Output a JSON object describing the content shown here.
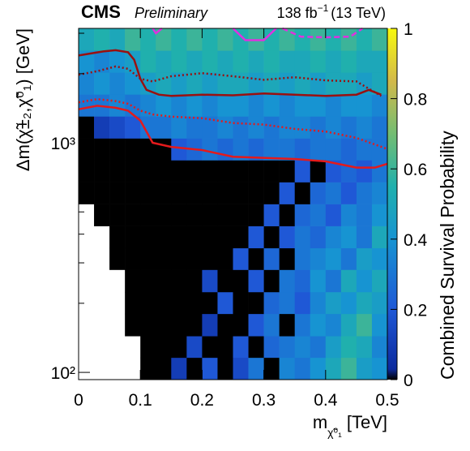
{
  "chart_data": {
    "type": "heatmap",
    "experiment": "CMS",
    "status": "Preliminary",
    "lumi": "138 fb",
    "lumi_exponent": "−1",
    "energy": "(13 TeV)",
    "xlabel_main": "m",
    "xlabel_sub": "χ̃⁰₁",
    "xlabel_unit": "[TeV]",
    "ylabel": "Δm(χ̃±₂,χ̃⁰₁) [GeV]",
    "zlabel": "Combined Survival Probability",
    "xlim": [
      0,
      0.5
    ],
    "xticks": [
      0,
      0.1,
      0.2,
      0.3,
      0.4,
      0.5
    ],
    "ylim": [
      93,
      3150
    ],
    "ylog": true,
    "yticks": [
      {
        "value": 100,
        "label": "10²"
      },
      {
        "value": 1000,
        "label": "10³"
      }
    ],
    "yminor": [
      200,
      300,
      400,
      500,
      600,
      700,
      800,
      900,
      2000,
      3000
    ],
    "zlim": [
      0,
      1
    ],
    "zticks": [
      0,
      0.2,
      0.4,
      0.6,
      0.8,
      1
    ],
    "colorscale": [
      [
        0,
        "#000000"
      ],
      [
        0.03,
        "#0c2a9e"
      ],
      [
        0.2,
        "#1f58d6"
      ],
      [
        0.4,
        "#1794d2"
      ],
      [
        0.55,
        "#20b0ad"
      ],
      [
        0.7,
        "#73bd72"
      ],
      [
        0.85,
        "#d2b94a"
      ],
      [
        1,
        "#f8fa0d"
      ]
    ],
    "xbins": [
      0,
      0.025,
      0.05,
      0.075,
      0.1,
      0.125,
      0.15,
      0.175,
      0.2,
      0.225,
      0.25,
      0.275,
      0.3,
      0.325,
      0.35,
      0.375,
      0.4,
      0.425,
      0.45,
      0.475,
      0.5
    ],
    "ybins": [
      93,
      116,
      144,
      180,
      224,
      280,
      348,
      434,
      541,
      674,
      840,
      1046,
      1304,
      1625,
      2025,
      2523,
      3150
    ],
    "z": [
      [
        null,
        null,
        null,
        null,
        0,
        0,
        0.1,
        0,
        0.2,
        0,
        0.15,
        0.3,
        0,
        0.35,
        0.3,
        0.4,
        0.5,
        0.6,
        0.45,
        0.4
      ],
      [
        null,
        null,
        null,
        null,
        0,
        0,
        0,
        0.15,
        0,
        0,
        0.2,
        0,
        0.25,
        0.3,
        0.35,
        0.3,
        0.45,
        0.55,
        0.5,
        0.35
      ],
      [
        null,
        null,
        null,
        0,
        0,
        0,
        0,
        0,
        0.1,
        0,
        0,
        0.2,
        0.3,
        0,
        0.3,
        0.4,
        0.35,
        0.5,
        0.6,
        0.4
      ],
      [
        null,
        null,
        null,
        0,
        0,
        0,
        0,
        0,
        0,
        0.2,
        0,
        0,
        0.25,
        0.3,
        0.2,
        0.35,
        0.45,
        0.4,
        0.5,
        0.45
      ],
      [
        null,
        null,
        null,
        0,
        0,
        0,
        0,
        0,
        0.15,
        0,
        0,
        0.2,
        0,
        0.3,
        0.25,
        0.4,
        0.3,
        0.5,
        0.4,
        0.5
      ],
      [
        null,
        null,
        0,
        0,
        0,
        0,
        0,
        0,
        0,
        0,
        0.2,
        0,
        0.25,
        0,
        0.3,
        0.35,
        0.4,
        0.3,
        0.45,
        0.4
      ],
      [
        null,
        null,
        0,
        0,
        0,
        0,
        0,
        0,
        0,
        0,
        0,
        0.2,
        0,
        0.2,
        0.3,
        0.25,
        0.35,
        0.4,
        0.3,
        0.5
      ],
      [
        null,
        0,
        0,
        0,
        0,
        0,
        0,
        0,
        0,
        0,
        0,
        0,
        0.2,
        0,
        0.25,
        0.3,
        0.2,
        0.35,
        0.3,
        0.4
      ],
      [
        0,
        0,
        0,
        0,
        0,
        0,
        0,
        0,
        0,
        0,
        0,
        0,
        0,
        0.2,
        0,
        0.25,
        0.3,
        0.2,
        0.3,
        0.35
      ],
      [
        0,
        0,
        0,
        0,
        0,
        0,
        0,
        0,
        0,
        0,
        0,
        0,
        0,
        0,
        0.2,
        0,
        0.2,
        0.25,
        0.2,
        0.3
      ],
      [
        0,
        0,
        0,
        0,
        0,
        0,
        0.2,
        0.25,
        0.3,
        0.25,
        0.3,
        0.25,
        0.3,
        0.3,
        0.25,
        0.3,
        0.3,
        0.25,
        0.3,
        0.3
      ],
      [
        0,
        0.1,
        0.15,
        0.2,
        0.3,
        0.3,
        0.35,
        0.3,
        0.3,
        0.35,
        0.3,
        0.35,
        0.3,
        0.35,
        0.35,
        0.3,
        0.35,
        0.3,
        0.35,
        0.3
      ],
      [
        0.3,
        0.3,
        0.35,
        0.3,
        0.35,
        0.4,
        0.35,
        0.4,
        0.35,
        0.4,
        0.4,
        0.35,
        0.4,
        0.35,
        0.4,
        0.4,
        0.35,
        0.4,
        0.4,
        0.35
      ],
      [
        0.35,
        0.4,
        0.35,
        0.4,
        0.45,
        0.5,
        0.45,
        0.5,
        0.45,
        0.5,
        0.5,
        0.45,
        0.5,
        0.45,
        0.5,
        0.45,
        0.5,
        0.5,
        0.45,
        0.5
      ],
      [
        0.4,
        0.35,
        0.4,
        0.45,
        0.55,
        0.5,
        0.55,
        0.5,
        0.55,
        0.5,
        0.55,
        0.5,
        0.55,
        0.5,
        0.5,
        0.55,
        0.5,
        0.55,
        0.5,
        0.5
      ],
      [
        0.5,
        0.55,
        0.5,
        0.6,
        0.55,
        0.6,
        0.55,
        0.6,
        0.55,
        0.6,
        0.55,
        0.6,
        0.55,
        0.6,
        0.55,
        0.6,
        0.55,
        0.6,
        0.55,
        0.6
      ]
    ],
    "series": [
      {
        "color": "#9a1010",
        "dash": "solid",
        "x": [
          0,
          0.02,
          0.04,
          0.06,
          0.08,
          0.09,
          0.1,
          0.11,
          0.13,
          0.15,
          0.2,
          0.25,
          0.3,
          0.35,
          0.4,
          0.45,
          0.47,
          0.49
        ],
        "values": [
          2400,
          2450,
          2500,
          2530,
          2480,
          2300,
          1900,
          1700,
          1620,
          1600,
          1620,
          1610,
          1640,
          1620,
          1600,
          1620,
          1700,
          1620
        ]
      },
      {
        "color": "#9a1010",
        "dash": "dotted",
        "x": [
          0,
          0.03,
          0.06,
          0.08,
          0.1,
          0.12,
          0.15,
          0.2,
          0.25,
          0.3,
          0.35,
          0.4,
          0.45,
          0.49
        ],
        "values": [
          1980,
          2050,
          2150,
          2100,
          1900,
          1850,
          1950,
          2010,
          1950,
          1880,
          1930,
          1870,
          1850,
          1600
        ]
      },
      {
        "color": "#e41a1c",
        "dash": "solid",
        "x": [
          0,
          0.03,
          0.06,
          0.08,
          0.1,
          0.12,
          0.15,
          0.2,
          0.25,
          0.3,
          0.35,
          0.4,
          0.45,
          0.48,
          0.5
        ],
        "values": [
          1400,
          1450,
          1420,
          1380,
          1250,
          1000,
          960,
          930,
          870,
          860,
          850,
          830,
          780,
          780,
          810
        ]
      },
      {
        "color": "#e41a1c",
        "dash": "dotted",
        "x": [
          0,
          0.03,
          0.06,
          0.08,
          0.1,
          0.12,
          0.15,
          0.2,
          0.25,
          0.3,
          0.35,
          0.4,
          0.45,
          0.5
        ],
        "values": [
          1500,
          1550,
          1520,
          1480,
          1380,
          1330,
          1300,
          1280,
          1220,
          1200,
          1150,
          1120,
          1050,
          940
        ]
      },
      {
        "color": "#e030e0",
        "dash": "solid",
        "x": [
          0.12,
          0.125,
          0.135,
          0.2,
          0.25,
          0.27,
          0.3,
          0.32
        ],
        "values": [
          3150,
          3000,
          3150,
          null,
          3150,
          2800,
          2800,
          3150
        ]
      },
      {
        "color": "#e030e0",
        "dash": "dashed",
        "x": [
          0.33,
          0.36,
          0.4,
          0.44,
          0.46
        ],
        "values": [
          3150,
          2900,
          2880,
          2900,
          3150
        ]
      }
    ]
  }
}
